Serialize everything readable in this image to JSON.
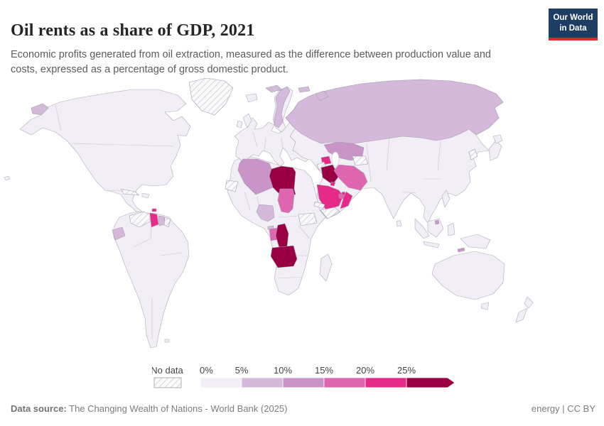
{
  "header": {
    "title": "Oil rents as a share of GDP, 2021",
    "subtitle_line1": "Economic profits generated from oil extraction, measured as the difference between production value and",
    "subtitle_line2": "costs, expressed as a percentage of gross domestic product.",
    "logo": {
      "line1": "Our World",
      "line2": "in Data",
      "bg_color": "#1d3d63",
      "accent_color": "#dc2a27"
    }
  },
  "legend": {
    "no_data_label": "No data",
    "ticks": [
      "0%",
      "5%",
      "10%",
      "15%",
      "20%",
      "25%"
    ]
  },
  "footer": {
    "source_label": "Data source:",
    "source_text": " The Changing Wealth of Nations - World Bank (2025)",
    "right_text": "energy | CC BY"
  },
  "chart_data": {
    "type": "choropleth",
    "title": "Oil rents as a share of GDP, 2021",
    "unit": "% of GDP",
    "legend_position": "bottom",
    "bucket_colors": {
      "0-5": "#f1eef6",
      "5-10": "#d4b9da",
      "10-15": "#c994c7",
      "15-20": "#df65b0",
      "20-25": "#e7298a",
      "25+": "#980043",
      "no-data": "hatch"
    },
    "default_bucket": "0-5",
    "countries": {
      "Libya": "25+",
      "Iraq": "25+",
      "Congo": "25+",
      "Angola": "25+",
      "Saudi Arabia": "20-25",
      "Oman": "20-25",
      "Kuwait": "20-25",
      "Qatar": "20-25",
      "Azerbaijan": "20-25",
      "Guyana": "20-25",
      "Trinidad and Tobago": "20-25",
      "Iran": "15-20",
      "Chad": "15-20",
      "Gabon": "15-20",
      "United Arab Emirates": "15-20",
      "Kazakhstan": "10-15",
      "Algeria": "10-15",
      "Brunei": "10-15",
      "Timor": "10-15",
      "Russia": "5-10",
      "Norway": "5-10",
      "Svalbard": "5-10",
      "Nigeria": "5-10",
      "Ecuador": "5-10",
      "Suriname": "5-10",
      "Equatorial Guinea": "5-10",
      "Greenland": "no-data",
      "Venezuela": "no-data",
      "French Guiana": "no-data",
      "Cuba": "no-data",
      "Western Sahara": "no-data",
      "Syria": "no-data",
      "Yemen": "no-data",
      "Turkmenistan": "no-data",
      "South Sudan": "no-data",
      "Eritrea": "no-data",
      "North Korea": "no-data"
    }
  }
}
